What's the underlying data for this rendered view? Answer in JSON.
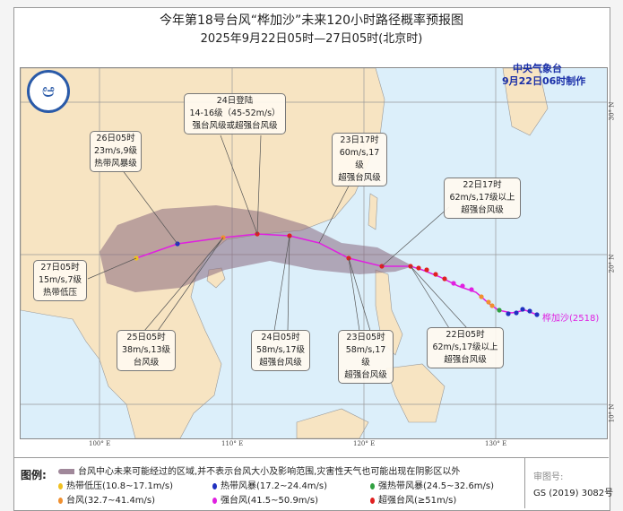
{
  "header": {
    "title": "今年第18号台风“桦加沙”未来120小时路径概率预报图",
    "subtitle": "2025年9月22日05时—27日05时(北京时)"
  },
  "issuer": {
    "name": "中央气象台",
    "time": "9月22日06时制作"
  },
  "typhoon_label": "桦加沙(2518)",
  "axes": {
    "lon": [
      "100° E",
      "110° E",
      "120° E",
      "130° E"
    ],
    "lat": [
      "30° N",
      "20° N",
      "10° N"
    ]
  },
  "annotations": [
    {
      "id": "landfall",
      "lines": [
        "24日登陆",
        "14-16级（45-52m/s）",
        "强台风级或超强台风级"
      ]
    },
    {
      "id": "t26",
      "lines": [
        "26日05时",
        "23m/s,9级",
        "热带风暴级"
      ]
    },
    {
      "id": "t2317",
      "lines": [
        "23日17时",
        "60m/s,17级",
        "超强台风级"
      ]
    },
    {
      "id": "t2217",
      "lines": [
        "22日17时",
        "62m/s,17级以上",
        "超强台风级"
      ]
    },
    {
      "id": "t27",
      "lines": [
        "27日05时",
        "15m/s,7级",
        "热带低压"
      ]
    },
    {
      "id": "t25",
      "lines": [
        "25日05时",
        "38m/s,13级",
        "台风级"
      ]
    },
    {
      "id": "t24",
      "lines": [
        "24日05时",
        "58m/s,17级",
        "超强台风级"
      ]
    },
    {
      "id": "t2305",
      "lines": [
        "23日05时",
        "58m/s,17级",
        "超强台风级"
      ]
    },
    {
      "id": "t2205",
      "lines": [
        "22日05时",
        "62m/s,17级以上",
        "超强台风级"
      ]
    }
  ],
  "legend": {
    "label": "图例:",
    "cone": "台风中心未来可能经过的区域,并不表示台风大小及影响范围,灾害性天气也可能出现在阴影区以外",
    "items": [
      {
        "text": "热带低压(10.8~17.1m/s)",
        "color": "#f0c020"
      },
      {
        "text": "热带风暴(17.2~24.4m/s)",
        "color": "#2030c0"
      },
      {
        "text": "强热带风暴(24.5~32.6m/s)",
        "color": "#30a040"
      },
      {
        "text": "台风(32.7~41.4m/s)",
        "color": "#f09030"
      },
      {
        "text": "强台风(41.5~50.9m/s)",
        "color": "#e020e0"
      },
      {
        "text": "超强台风(≥51m/s)",
        "color": "#e02020"
      }
    ],
    "map_no_label": "审图号:",
    "map_no": "GS (2019) 3082号"
  },
  "colors": {
    "land": "#f7e4c2",
    "sea": "#dceffa",
    "cone": "#8a6a80",
    "track": "#e020e0"
  }
}
